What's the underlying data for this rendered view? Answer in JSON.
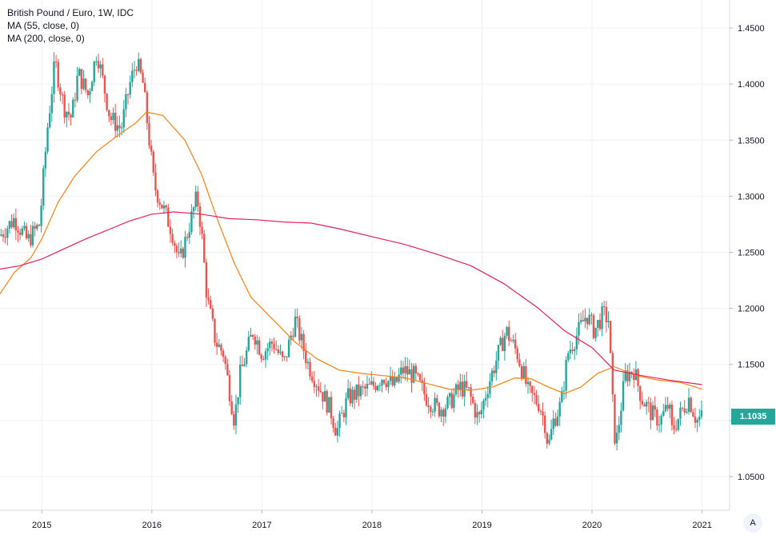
{
  "legend": {
    "title": "British Pound / Euro, 1W, IDC",
    "ma1": "MA (55, close, 0)",
    "ma2": "MA (200, close, 0)"
  },
  "last_price_label": "1.1035",
  "auto_scale_label": "A",
  "colors": {
    "up": "#26a69a",
    "down": "#ef5350",
    "ma55": "#ff7f0e",
    "ma200": "#e91e63",
    "grid": "#eef0f4",
    "axis_text": "#131722"
  },
  "chart_data": {
    "type": "candlestick",
    "title": "British Pound / Euro, 1W, IDC",
    "xlabel": "",
    "ylabel": "",
    "x_ticks": [
      "2015",
      "2016",
      "2017",
      "2018",
      "2019",
      "2020",
      "2021"
    ],
    "x_tick_values": [
      2015,
      2016,
      2017,
      2018,
      2019,
      2020,
      2021
    ],
    "y_ticks": [
      "1.4500",
      "1.4000",
      "1.3500",
      "1.3000",
      "1.2500",
      "1.2000",
      "1.1500",
      "1.1000",
      "1.0500"
    ],
    "xlim": [
      2014.62,
      2021.25
    ],
    "ylim": [
      1.02,
      1.475
    ],
    "grid": true,
    "last_price": 1.1035,
    "close_anchors": [
      [
        2014.62,
        1.265
      ],
      [
        2014.75,
        1.28
      ],
      [
        2014.87,
        1.26
      ],
      [
        2014.98,
        1.275
      ],
      [
        2015.05,
        1.36
      ],
      [
        2015.12,
        1.42
      ],
      [
        2015.2,
        1.38
      ],
      [
        2015.27,
        1.37
      ],
      [
        2015.33,
        1.41
      ],
      [
        2015.42,
        1.39
      ],
      [
        2015.5,
        1.43
      ],
      [
        2015.56,
        1.4
      ],
      [
        2015.62,
        1.37
      ],
      [
        2015.72,
        1.36
      ],
      [
        2015.8,
        1.4
      ],
      [
        2015.86,
        1.42
      ],
      [
        2015.92,
        1.4
      ],
      [
        2016.02,
        1.31
      ],
      [
        2016.1,
        1.29
      ],
      [
        2016.18,
        1.27
      ],
      [
        2016.25,
        1.24
      ],
      [
        2016.33,
        1.27
      ],
      [
        2016.41,
        1.3
      ],
      [
        2016.45,
        1.27
      ],
      [
        2016.5,
        1.21
      ],
      [
        2016.58,
        1.17
      ],
      [
        2016.65,
        1.16
      ],
      [
        2016.75,
        1.1
      ],
      [
        2016.8,
        1.14
      ],
      [
        2016.92,
        1.18
      ],
      [
        2017.0,
        1.16
      ],
      [
        2017.1,
        1.17
      ],
      [
        2017.2,
        1.15
      ],
      [
        2017.3,
        1.19
      ],
      [
        2017.42,
        1.15
      ],
      [
        2017.52,
        1.13
      ],
      [
        2017.62,
        1.11
      ],
      [
        2017.68,
        1.09
      ],
      [
        2017.78,
        1.12
      ],
      [
        2017.88,
        1.125
      ],
      [
        2018.0,
        1.13
      ],
      [
        2018.1,
        1.14
      ],
      [
        2018.2,
        1.13
      ],
      [
        2018.28,
        1.145
      ],
      [
        2018.38,
        1.14
      ],
      [
        2018.5,
        1.12
      ],
      [
        2018.6,
        1.11
      ],
      [
        2018.7,
        1.115
      ],
      [
        2018.8,
        1.13
      ],
      [
        2018.88,
        1.125
      ],
      [
        2018.97,
        1.1
      ],
      [
        2019.05,
        1.13
      ],
      [
        2019.15,
        1.16
      ],
      [
        2019.22,
        1.18
      ],
      [
        2019.32,
        1.16
      ],
      [
        2019.38,
        1.14
      ],
      [
        2019.42,
        1.125
      ],
      [
        2019.52,
        1.115
      ],
      [
        2019.58,
        1.095
      ],
      [
        2019.6,
        1.075
      ],
      [
        2019.65,
        1.1
      ],
      [
        2019.72,
        1.115
      ],
      [
        2019.78,
        1.16
      ],
      [
        2019.88,
        1.18
      ],
      [
        2019.95,
        1.195
      ],
      [
        2020.02,
        1.18
      ],
      [
        2020.1,
        1.195
      ],
      [
        2020.15,
        1.19
      ],
      [
        2020.2,
        1.09
      ],
      [
        2020.22,
        1.08
      ],
      [
        2020.3,
        1.14
      ],
      [
        2020.38,
        1.145
      ],
      [
        2020.45,
        1.12
      ],
      [
        2020.55,
        1.105
      ],
      [
        2020.62,
        1.1
      ],
      [
        2020.7,
        1.115
      ],
      [
        2020.72,
        1.09
      ],
      [
        2020.8,
        1.105
      ],
      [
        2020.88,
        1.12
      ],
      [
        2020.95,
        1.1
      ],
      [
        2021.0,
        1.1035
      ]
    ],
    "series": [
      {
        "name": "MA (55, close, 0)",
        "x": [
          2014.62,
          2014.75,
          2014.9,
          2015.0,
          2015.15,
          2015.3,
          2015.5,
          2015.7,
          2015.85,
          2015.95,
          2016.1,
          2016.3,
          2016.45,
          2016.6,
          2016.75,
          2016.9,
          2017.1,
          2017.3,
          2017.5,
          2017.7,
          2017.9,
          2018.1,
          2018.3,
          2018.5,
          2018.7,
          2018.9,
          2019.1,
          2019.3,
          2019.45,
          2019.6,
          2019.75,
          2019.9,
          2020.05,
          2020.2,
          2020.4,
          2020.6,
          2020.8,
          2021.0
        ],
        "values": [
          1.213,
          1.232,
          1.245,
          1.262,
          1.295,
          1.318,
          1.34,
          1.355,
          1.365,
          1.375,
          1.372,
          1.35,
          1.32,
          1.278,
          1.24,
          1.21,
          1.19,
          1.17,
          1.155,
          1.145,
          1.142,
          1.14,
          1.138,
          1.133,
          1.128,
          1.127,
          1.13,
          1.138,
          1.137,
          1.13,
          1.124,
          1.13,
          1.142,
          1.148,
          1.14,
          1.136,
          1.134,
          1.128
        ]
      },
      {
        "name": "MA (200, close, 0)",
        "x": [
          2014.62,
          2014.8,
          2015.0,
          2015.2,
          2015.4,
          2015.6,
          2015.8,
          2016.0,
          2016.2,
          2016.45,
          2016.7,
          2016.95,
          2017.2,
          2017.45,
          2017.7,
          2018.0,
          2018.3,
          2018.6,
          2018.9,
          2019.2,
          2019.5,
          2019.75,
          2020.0,
          2020.2,
          2020.45,
          2020.7,
          2021.0
        ],
        "values": [
          1.235,
          1.238,
          1.244,
          1.253,
          1.262,
          1.27,
          1.278,
          1.284,
          1.286,
          1.284,
          1.28,
          1.279,
          1.277,
          1.276,
          1.271,
          1.264,
          1.257,
          1.248,
          1.238,
          1.222,
          1.201,
          1.18,
          1.165,
          1.145,
          1.14,
          1.136,
          1.132
        ]
      }
    ]
  }
}
